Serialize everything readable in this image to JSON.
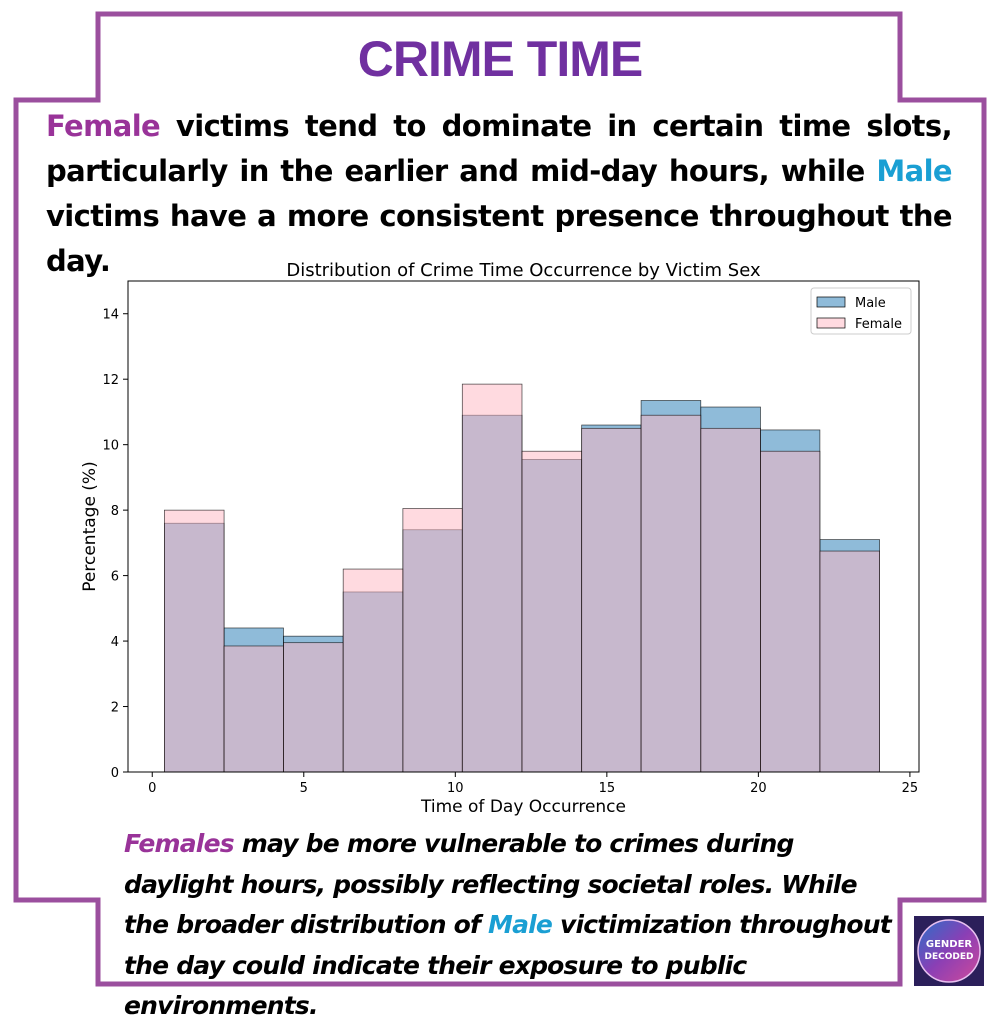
{
  "poster": {
    "title": "CRIME TIME",
    "intro": {
      "female_word": "Female",
      "part1": " victims tend to dominate in certain time slots, particularly in the earlier and mid-day hours, while ",
      "male_word": "Male",
      "part2": " victims have a more consistent presence throughout the day."
    },
    "outro": {
      "female_word": "Females",
      "part1": " may be more vulnerable to crimes during daylight hours, possibly reflecting societal roles. While the broader distribution of ",
      "male_word": "Male",
      "part2": " victimization throughout the day could indicate their exposure to public environments."
    },
    "logo_text": [
      "GENDER",
      "DECODED"
    ],
    "colors": {
      "frame": "#9b4f9e",
      "title": "#7030a0",
      "female_text": "#993399",
      "male_text": "#1a9fd3"
    }
  },
  "chart_data": {
    "type": "bar",
    "title": "Distribution of Crime Time Occurrence by Victim Sex",
    "xlabel": "Time of Day Occurrence",
    "ylabel": "Percentage (%)",
    "xlim": [
      -0.8,
      25.3
    ],
    "ylim": [
      0,
      15
    ],
    "xticks": [
      0,
      5,
      10,
      15,
      20,
      25
    ],
    "yticks": [
      0,
      2,
      4,
      6,
      8,
      10,
      12,
      14
    ],
    "bin_edges": [
      0.4,
      2.37,
      4.33,
      6.3,
      8.27,
      10.23,
      12.2,
      14.17,
      16.13,
      18.1,
      20.07,
      22.03,
      24.0
    ],
    "series": [
      {
        "name": "Male",
        "color": "#1f77b4",
        "alpha": 0.5,
        "values": [
          7.6,
          4.4,
          4.15,
          5.5,
          7.4,
          10.9,
          9.55,
          10.6,
          11.35,
          11.15,
          10.45,
          7.1
        ]
      },
      {
        "name": "Female",
        "color": "#ffb6c1",
        "alpha": 0.5,
        "values": [
          8.0,
          3.85,
          3.95,
          6.2,
          8.05,
          11.85,
          9.8,
          10.5,
          10.9,
          10.5,
          9.8,
          6.75
        ]
      }
    ],
    "grid": false,
    "legend": "top-right"
  }
}
